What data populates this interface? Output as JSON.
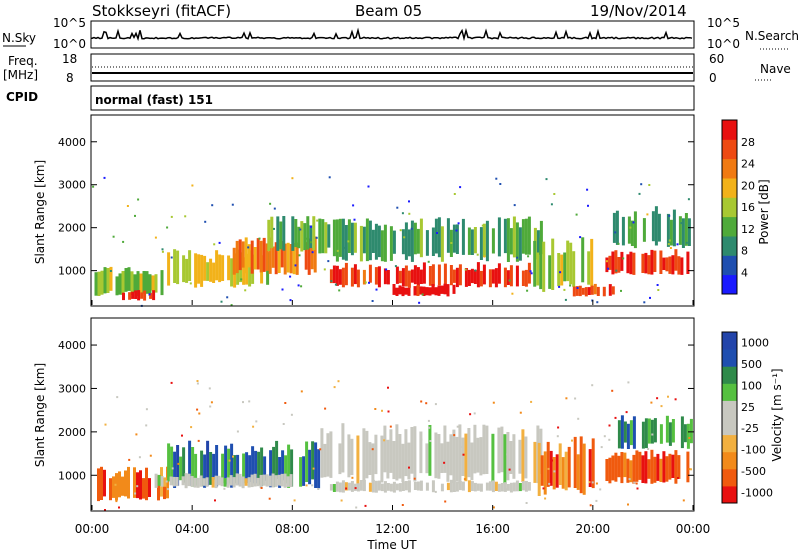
{
  "header": {
    "station": "Stokkseyri (fitACF)",
    "beam": "Beam 05",
    "date": "19/Nov/2014"
  },
  "strips": {
    "nsky_label": "N.Sky",
    "nsearch_label": "N.Search",
    "nsky_ticks": [
      "10^5",
      "10^0"
    ],
    "nsearch_ticks": [
      "10^5",
      "10^0"
    ],
    "freq_label": "Freq.",
    "freq_unit": "[MHz]",
    "freq_ticks": [
      "18",
      "8"
    ],
    "nave_label": "Nave",
    "nave_ticks": [
      "60",
      "0"
    ],
    "cpid_label": "CPID",
    "cpid_value": "normal (fast) 151"
  },
  "colors": {
    "power_scale": [
      "#1a1aff",
      "#1f4fb0",
      "#2e8a6e",
      "#4faa3a",
      "#a8c832",
      "#f2b21a",
      "#f07a12",
      "#ee4a12",
      "#e81010"
    ],
    "velocity_scale": [
      "#e81010",
      "#f05a0e",
      "#f28a1a",
      "#f2b040",
      "#c8c8c0",
      "#c8c8c0",
      "#55c040",
      "#2f8a4a",
      "#1f4fb0",
      "#2244aa"
    ],
    "noise_line": "#000000"
  },
  "chart_data": [
    {
      "type": "heatmap",
      "name": "Power",
      "ylabel": "Slant Range [km]",
      "yticks": [
        "1000",
        "2000",
        "3000",
        "4000"
      ],
      "ylim": [
        200,
        4600
      ],
      "xlim_hours": [
        0,
        24
      ],
      "colorbar": {
        "label": "Power [dB]",
        "ticks": [
          "4",
          "8",
          "12",
          "16",
          "20",
          "24",
          "28"
        ],
        "range": [
          0,
          32
        ]
      },
      "echo_bands": [
        {
          "t0": 0.1,
          "t1": 2.8,
          "r0": 400,
          "r1": 1100,
          "level": 0.45
        },
        {
          "t0": 1.2,
          "t1": 2.6,
          "r0": 300,
          "r1": 550,
          "level": 0.95
        },
        {
          "t0": 3.0,
          "t1": 7.0,
          "r0": 600,
          "r1": 1500,
          "level": 0.55
        },
        {
          "t0": 5.5,
          "t1": 9.0,
          "r0": 900,
          "r1": 1800,
          "level": 0.7
        },
        {
          "t0": 7.0,
          "t1": 9.5,
          "r0": 1400,
          "r1": 2300,
          "level": 0.4
        },
        {
          "t0": 9.5,
          "t1": 17.5,
          "r0": 600,
          "r1": 1200,
          "level": 0.9
        },
        {
          "t0": 12.0,
          "t1": 14.5,
          "r0": 400,
          "r1": 700,
          "level": 0.97
        },
        {
          "t0": 9.5,
          "t1": 18.0,
          "r0": 1200,
          "r1": 2300,
          "level": 0.35
        },
        {
          "t0": 17.5,
          "t1": 20.0,
          "r0": 500,
          "r1": 1800,
          "level": 0.5
        },
        {
          "t0": 19.2,
          "t1": 20.8,
          "r0": 400,
          "r1": 700,
          "level": 0.8
        },
        {
          "t0": 20.5,
          "t1": 23.8,
          "r0": 900,
          "r1": 1500,
          "level": 0.9
        },
        {
          "t0": 20.8,
          "t1": 23.9,
          "r0": 1500,
          "r1": 2500,
          "level": 0.35
        }
      ]
    },
    {
      "type": "heatmap",
      "name": "Velocity",
      "ylabel": "Slant Range [km]",
      "yticks": [
        "1000",
        "2000",
        "3000",
        "4000"
      ],
      "ylim": [
        200,
        4600
      ],
      "xlim_hours": [
        0,
        24
      ],
      "xticks": [
        "00:00",
        "04:00",
        "08:00",
        "12:00",
        "16:00",
        "20:00",
        "00:00"
      ],
      "xlabel": "Time UT",
      "colorbar": {
        "label": "Velocity [m s⁻¹]",
        "ticks": [
          "1000",
          "500",
          "100",
          "25",
          "-25",
          "-100",
          "-500",
          "-1000"
        ]
      },
      "echo_bands": [
        {
          "t0": 0.2,
          "t1": 3.0,
          "r0": 400,
          "r1": 1200,
          "level": 0.2
        },
        {
          "t0": 3.0,
          "t1": 9.0,
          "r0": 700,
          "r1": 1800,
          "level": 0.78
        },
        {
          "t0": 2.5,
          "t1": 8.0,
          "r0": 700,
          "r1": 1050,
          "level": 0.5
        },
        {
          "t0": 9.0,
          "t1": 18.0,
          "r0": 800,
          "r1": 2200,
          "level": 0.5
        },
        {
          "t0": 9.5,
          "t1": 17.5,
          "r0": 600,
          "r1": 900,
          "level": 0.5
        },
        {
          "t0": 17.8,
          "t1": 20.0,
          "r0": 500,
          "r1": 1900,
          "level": 0.2
        },
        {
          "t0": 20.5,
          "t1": 23.8,
          "r0": 800,
          "r1": 1600,
          "level": 0.12
        },
        {
          "t0": 21.0,
          "t1": 23.9,
          "r0": 1600,
          "r1": 2400,
          "level": 0.72
        }
      ]
    }
  ]
}
